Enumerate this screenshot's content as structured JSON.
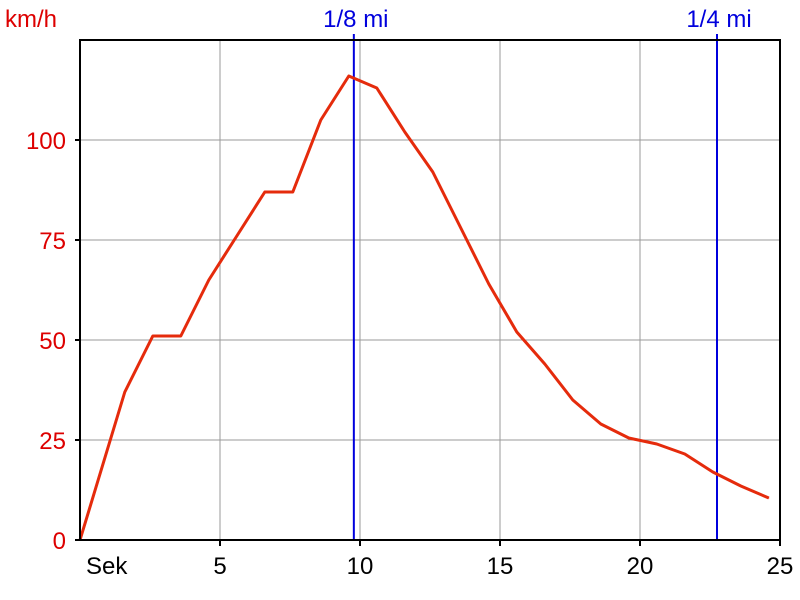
{
  "chart_data": {
    "type": "line",
    "ylabel": "km/h",
    "xlabel": "Sek",
    "xlim": [
      0,
      25
    ],
    "ylim": [
      0,
      125
    ],
    "x_ticks": [
      5,
      10,
      15,
      20,
      25
    ],
    "y_ticks": [
      0,
      25,
      50,
      75,
      100
    ],
    "grid": true,
    "series": [
      {
        "color": "#e52b0c",
        "x": [
          0,
          1.6,
          2.6,
          3.6,
          4.6,
          5.6,
          6.6,
          7.6,
          8.6,
          9.6,
          10.6,
          11.6,
          12.6,
          13.6,
          14.6,
          15.6,
          16.6,
          17.6,
          18.6,
          19.6,
          20.6,
          21.6,
          22.6,
          23.6,
          24.6
        ],
        "y": [
          0,
          37,
          51,
          51,
          65,
          76,
          87,
          87,
          105,
          116,
          113,
          102,
          92,
          78,
          64,
          52,
          44,
          35,
          29,
          25.5,
          24,
          21.5,
          17,
          13.5,
          10.5
        ]
      }
    ],
    "markers": [
      {
        "label": "1/8 mi",
        "x": 9.78,
        "color": "#0000dd"
      },
      {
        "label": "1/4 mi",
        "x": 22.75,
        "color": "#0000dd"
      }
    ],
    "colors": {
      "y_axis_text": "#dd0000",
      "x_axis_text": "#000000",
      "marker": "#0000dd",
      "line": "#e52b0c"
    }
  }
}
